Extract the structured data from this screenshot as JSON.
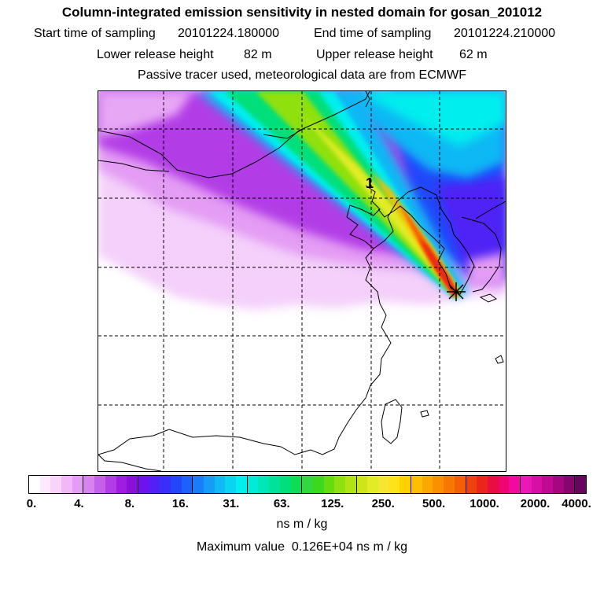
{
  "header": {
    "title": "Column-integrated emission sensitivity in nested domain for gosan_201012",
    "start_label": "Start time of sampling",
    "start_value": "20101224.180000",
    "end_label": "End time of sampling",
    "end_value": "20101224.210000",
    "lower_label": "Lower release height",
    "lower_value": "82 m",
    "upper_label": "Upper release height",
    "upper_value": "62 m",
    "subtitle": "Passive tracer used, meteorological data are from ECMWF"
  },
  "map": {
    "marker_label": "1",
    "release_marker": "asterisk-icon"
  },
  "colorbar": {
    "ticks": [
      "0.",
      "4.",
      "8.",
      "16.",
      "31.",
      "63.",
      "125.",
      "250.",
      "500.",
      "1000.",
      "2000.",
      "4000."
    ],
    "colors": [
      "#ffffff",
      "#fdeafe",
      "#f8d4fb",
      "#f0b8f8",
      "#e49cf4",
      "#d783ee",
      "#c560ea",
      "#b23ce6",
      "#a01de0",
      "#8b0fd8",
      "#6b14ee",
      "#5020f6",
      "#3a2ffa",
      "#2446fb",
      "#1e60fa",
      "#1a7df8",
      "#149cf6",
      "#10b8f4",
      "#09d5f0",
      "#00eeee",
      "#00ead8",
      "#00e6b8",
      "#00e29a",
      "#00df7a",
      "#10dc58",
      "#33d93c",
      "#3cd81e",
      "#66dc10",
      "#8fe010",
      "#b2e414",
      "#cce61a",
      "#e2ec26",
      "#f6e632",
      "#fee318",
      "#fed200",
      "#fdbf00",
      "#fca700",
      "#fa8f00",
      "#f77800",
      "#f35e06",
      "#ee4110",
      "#e92619",
      "#ea0d44",
      "#f0066e",
      "#f308a0",
      "#ea18b6",
      "#d80fa4",
      "#c00a92",
      "#a40880",
      "#86066e",
      "#680560"
    ]
  },
  "units": "ns m / kg",
  "max_label": "Maximum value",
  "max_value": "0.126E+04 ns m / kg"
}
